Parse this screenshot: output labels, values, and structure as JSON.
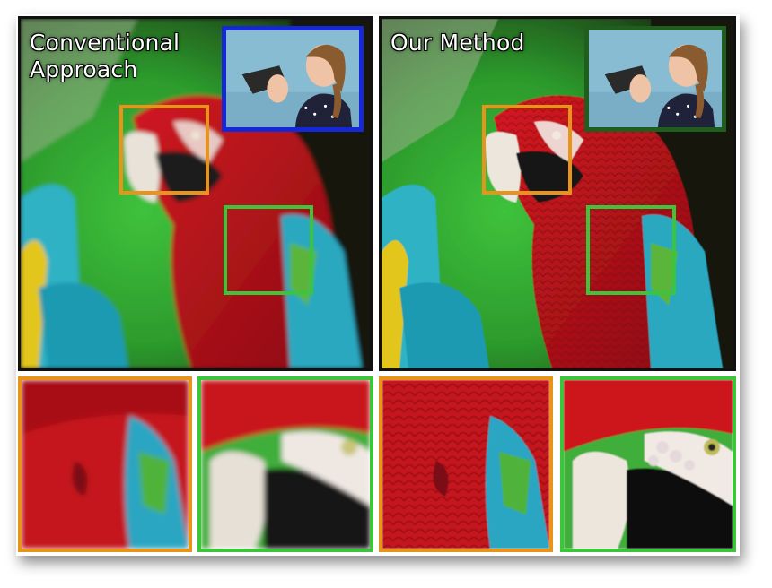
{
  "figure": {
    "left_caption": "Conventional\nApproach",
    "right_caption": "Our Method"
  },
  "colors": {
    "orange_box": "#e8941a",
    "green_box": "#3cc43a",
    "blue_frame": "#1428d8",
    "dark_green_frame": "#1f5e1f"
  },
  "panels": [
    {
      "name": "conventional-approach-image",
      "blur": 2.2,
      "inset_frame": "blue"
    },
    {
      "name": "our-method-image",
      "blur": 0.6,
      "inset_frame": "dark-green"
    }
  ],
  "crops": [
    {
      "name": "crop-conventional-wing",
      "frame": "orange",
      "subject": "wing",
      "blur": 2.4
    },
    {
      "name": "crop-conventional-head",
      "frame": "green",
      "subject": "head",
      "blur": 2.4
    },
    {
      "name": "crop-ours-wing",
      "frame": "orange",
      "subject": "wing",
      "blur": 0.7
    },
    {
      "name": "crop-ours-head",
      "frame": "green",
      "subject": "head",
      "blur": 0.7
    }
  ]
}
